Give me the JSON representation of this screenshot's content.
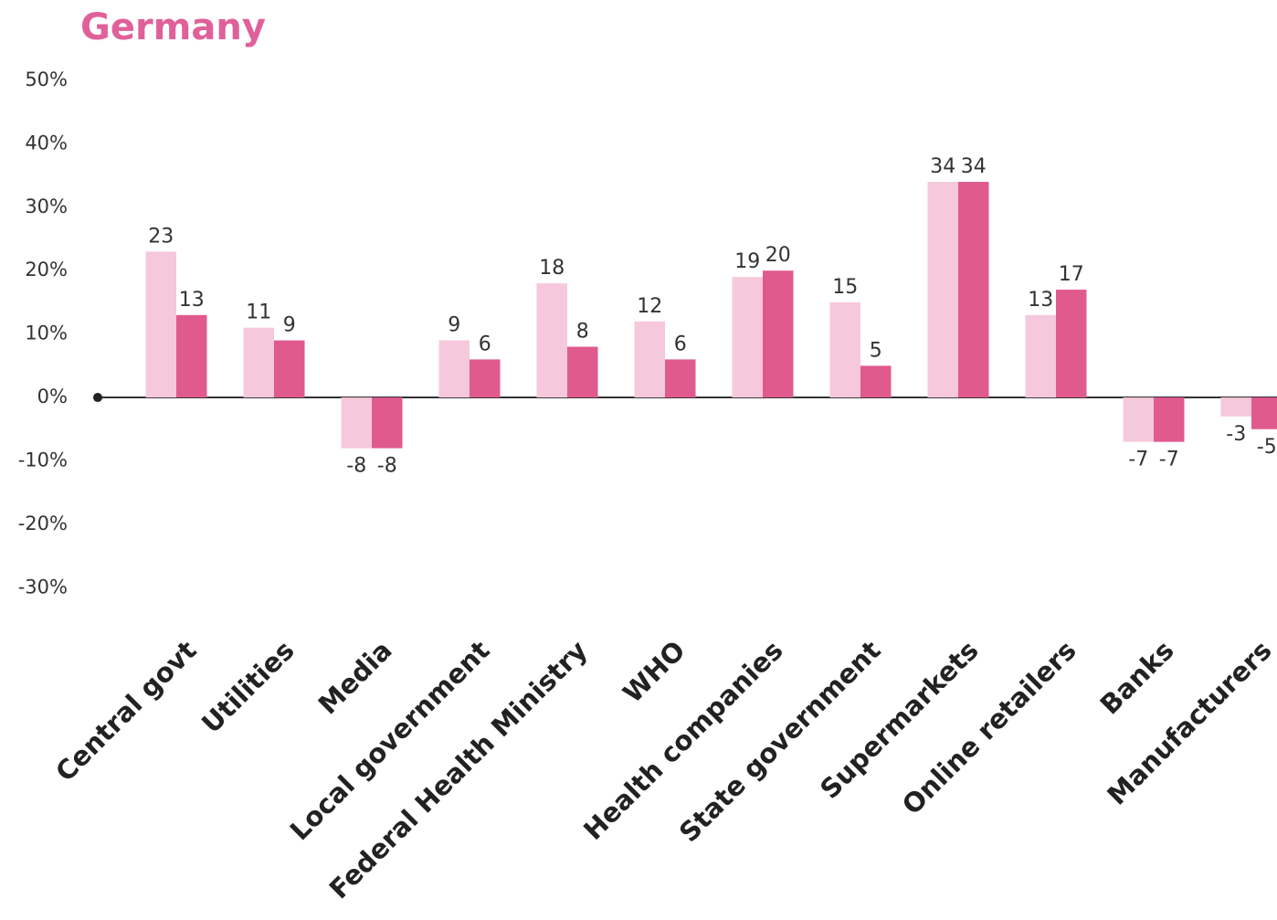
{
  "chart_data": {
    "type": "bar",
    "title": "Germany",
    "categories": [
      "Central govt",
      "Utilities",
      "Media",
      "Local government",
      "Federal Health Ministry",
      "WHO",
      "Health companies",
      "State government",
      "Supermarkets",
      "Online retailers",
      "Banks",
      "Manufacturers"
    ],
    "series": [
      {
        "color": "#f6c8db",
        "values": [
          23,
          11,
          -8,
          9,
          18,
          12,
          19,
          15,
          34,
          13,
          -7,
          -3
        ]
      },
      {
        "color": "#e05a8e",
        "values": [
          13,
          9,
          -8,
          6,
          8,
          6,
          20,
          5,
          34,
          17,
          -7,
          -5
        ]
      }
    ],
    "ylim": [
      -35,
      50
    ],
    "yticks": [
      {
        "value": -30,
        "label": "-30%"
      },
      {
        "value": -20,
        "label": "-20%"
      },
      {
        "value": -10,
        "label": "-10%"
      },
      {
        "value": 0,
        "label": "0%"
      },
      {
        "value": 10,
        "label": "10%"
      },
      {
        "value": 20,
        "label": "20%"
      },
      {
        "value": 30,
        "label": "30%"
      },
      {
        "value": 40,
        "label": "40%"
      },
      {
        "value": 50,
        "label": "50%"
      }
    ],
    "title_color": "#e0609a"
  }
}
